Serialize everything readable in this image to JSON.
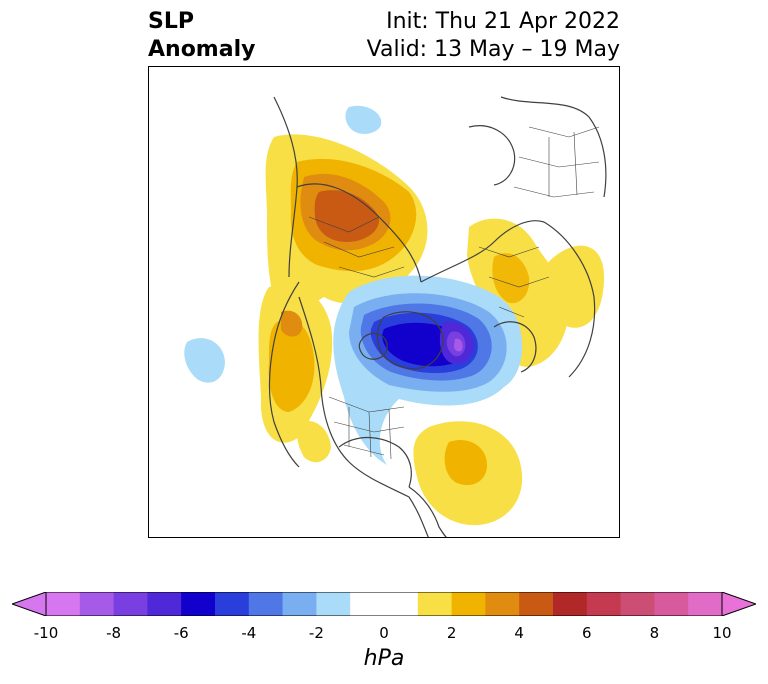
{
  "title": {
    "left_line1": "SLP",
    "left_line2": "Anomaly",
    "init": "Init: Thu 21 Apr 2022",
    "valid": "Valid: 13 May – 19 May"
  },
  "colorbar": {
    "label": "hPa",
    "ticks": [
      "-10",
      "-8",
      "-6",
      "-4",
      "-2",
      "0",
      "2",
      "4",
      "6",
      "8",
      "10"
    ],
    "colors": [
      "#d777f0",
      "#a65be8",
      "#7a3fe0",
      "#4f28d8",
      "#1200cc",
      "#2a3edc",
      "#4f78e6",
      "#79aff0",
      "#aadbf8",
      "#ffffff",
      "#ffffff",
      "#f8df45",
      "#f0b400",
      "#e08c10",
      "#c85a14",
      "#b02828",
      "#c43a50",
      "#cc4e74",
      "#d65a9c",
      "#e06cc8"
    ],
    "min_color": "#d777f0",
    "max_color": "#e872d8"
  }
}
